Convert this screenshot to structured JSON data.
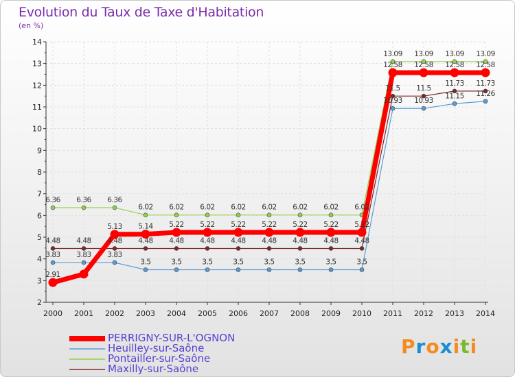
{
  "title": "Evolution du Taux de Taxe d'Habitation",
  "unit": "(en %)",
  "logo": {
    "letters": [
      "P",
      "r",
      "o",
      "x",
      "i",
      "t",
      "i"
    ],
    "colors": [
      "#f28c1e",
      "#1a8fd0",
      "#f28c1e",
      "#1a8fd0",
      "#f28c1e",
      "#7cb82f",
      "#f28c1e"
    ]
  },
  "chart_data": {
    "type": "line",
    "title": "Evolution du Taux de Taxe d'Habitation",
    "ylabel": "(en %)",
    "xlabel": "",
    "x": [
      "2000",
      "2001",
      "2002",
      "2003",
      "2004",
      "2005",
      "2006",
      "2007",
      "2008",
      "2009",
      "2010",
      "2011",
      "2012",
      "2013",
      "2014"
    ],
    "ylim": [
      2,
      14
    ],
    "yticks": [
      "2",
      "3",
      "4",
      "5",
      "6",
      "7",
      "8",
      "9",
      "10",
      "11",
      "12",
      "13",
      "14"
    ],
    "legend_position": "bottom-left",
    "series": [
      {
        "name": "PERRIGNY-SUR-L'OGNON",
        "color": "#ff0000",
        "width": 7,
        "values": [
          2.91,
          3.3,
          5.13,
          5.14,
          5.22,
          5.22,
          5.22,
          5.22,
          5.22,
          5.22,
          5.22,
          12.58,
          12.58,
          12.58,
          12.58
        ],
        "labels": [
          "2.91",
          "",
          "5.13",
          "5.14",
          "5.22",
          "5.22",
          "5.22",
          "5.22",
          "5.22",
          "5.22",
          "5.22",
          "12.58",
          "12.58",
          "12.58",
          "12.58"
        ]
      },
      {
        "name": "Heuilley-sur-Saône",
        "color": "#5b9bd5",
        "width": 1.2,
        "values": [
          3.83,
          3.83,
          3.83,
          3.5,
          3.5,
          3.5,
          3.5,
          3.5,
          3.5,
          3.5,
          3.5,
          10.93,
          10.93,
          11.15,
          11.26
        ],
        "labels": [
          "3.83",
          "3.83",
          "3.83",
          "3.5",
          "3.5",
          "3.5",
          "3.5",
          "3.5",
          "3.5",
          "3.5",
          "3.5",
          "10.93",
          "10.93",
          "11.15",
          "11.26"
        ]
      },
      {
        "name": "Pontailler-sur-Saône",
        "color": "#8fd24a",
        "width": 1.2,
        "values": [
          6.36,
          6.36,
          6.36,
          6.02,
          6.02,
          6.02,
          6.02,
          6.02,
          6.02,
          6.02,
          6.02,
          13.09,
          13.09,
          13.09,
          13.09
        ],
        "labels": [
          "6.36",
          "6.36",
          "6.36",
          "6.02",
          "6.02",
          "6.02",
          "6.02",
          "6.02",
          "6.02",
          "6.02",
          "6.02",
          "13.09",
          "13.09",
          "13.09",
          "13.09"
        ]
      },
      {
        "name": "Maxilly-sur-Saône",
        "color": "#7a2a2a",
        "width": 1.2,
        "values": [
          4.48,
          4.48,
          4.48,
          4.48,
          4.48,
          4.48,
          4.48,
          4.48,
          4.48,
          4.48,
          4.48,
          11.5,
          11.5,
          11.73,
          11.73
        ],
        "labels": [
          "4.48",
          "4.48",
          "4.48",
          "4.48",
          "4.48",
          "4.48",
          "4.48",
          "4.48",
          "4.48",
          "4.48",
          "4.48",
          "11.5",
          "11.5",
          "11.73",
          "11.73"
        ]
      }
    ]
  }
}
